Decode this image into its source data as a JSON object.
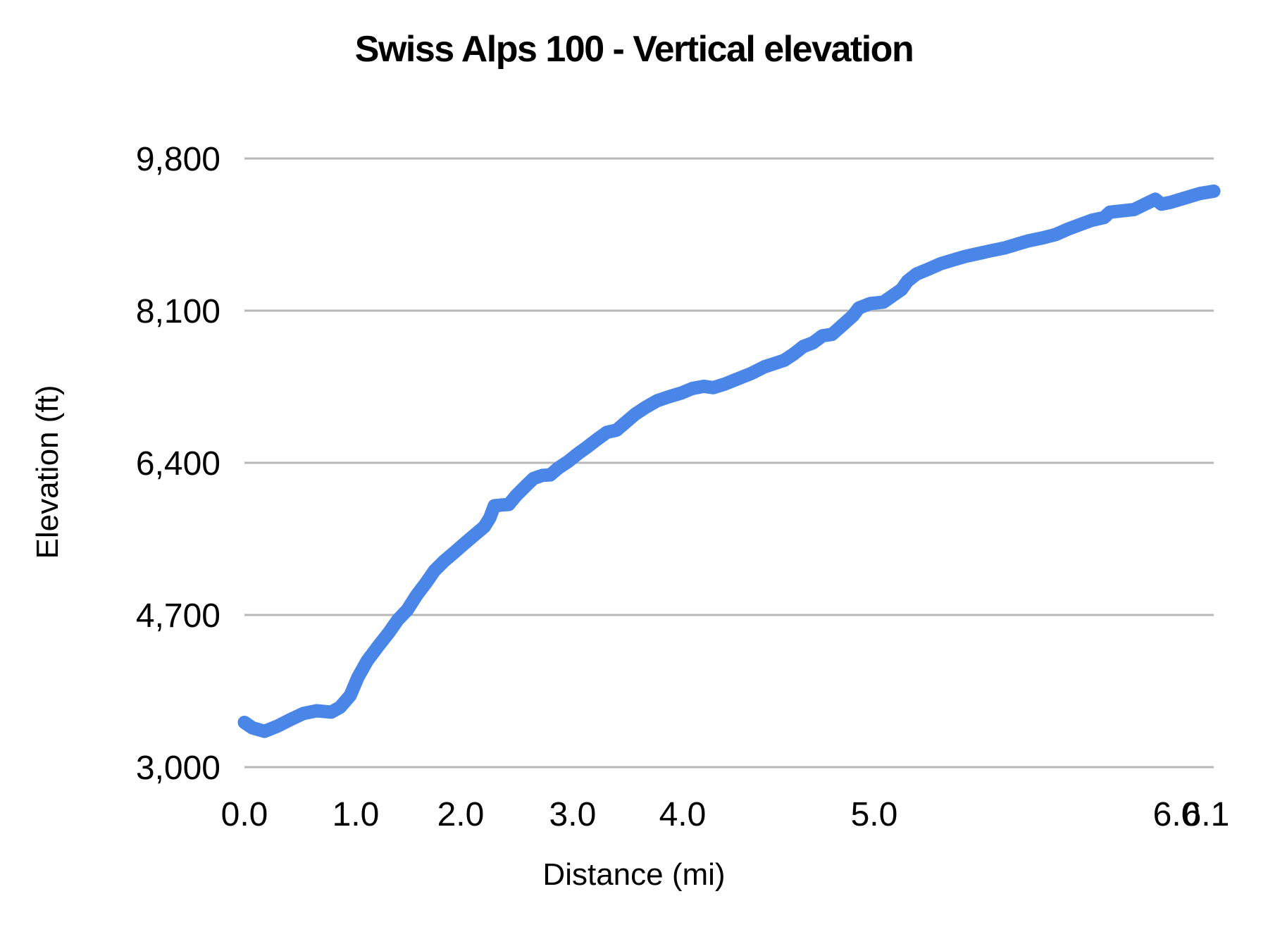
{
  "page": {
    "background": "#ffffff"
  },
  "chart_data": {
    "type": "line",
    "title": "Swiss Alps 100 - Vertical elevation",
    "xlabel": "Distance (mi)",
    "ylabel": "Elevation (ft)",
    "legend": "none",
    "grid": "horizontal-only",
    "grid_color": "#b7b7b7",
    "ylim": [
      3000,
      9800
    ],
    "xlim": [
      0,
      6.13
    ],
    "y_ticks": [
      {
        "value": 9800,
        "label": "9,800"
      },
      {
        "value": 8100,
        "label": "8,100"
      },
      {
        "value": 6400,
        "label": "6,400"
      },
      {
        "value": 4700,
        "label": "4,700"
      },
      {
        "value": 3000,
        "label": "3,000"
      }
    ],
    "x_ticks": [
      {
        "value": 0.0,
        "label": "0.0"
      },
      {
        "value": 1.0,
        "label": "1.0"
      },
      {
        "value": 2.0,
        "label": "2.0"
      },
      {
        "value": 3.0,
        "label": "3.0"
      },
      {
        "value": 4.0,
        "label": "4.0"
      },
      {
        "value": 5.0,
        "label": "5.0"
      },
      {
        "value": 6.0,
        "label": "6.0"
      },
      {
        "value": 6.1,
        "label": "6.1"
      }
    ],
    "x_axis_note": "category-style axis with uneven pixel spacing per mile",
    "x_anchors_mi_fraction": [
      [
        0.0,
        0.0
      ],
      [
        1.0,
        0.1148
      ],
      [
        2.0,
        0.2231
      ],
      [
        3.0,
        0.3386
      ],
      [
        4.0,
        0.452
      ],
      [
        5.0,
        0.6497
      ],
      [
        6.0,
        0.9615
      ],
      [
        6.1,
        0.992
      ],
      [
        6.13,
        1.0
      ]
    ],
    "series": [
      {
        "name": "Elevation",
        "color": "#4a86e8",
        "stroke_width": 19,
        "points_mi_ft": [
          [
            0.0,
            3500
          ],
          [
            0.07,
            3440
          ],
          [
            0.18,
            3400
          ],
          [
            0.3,
            3460
          ],
          [
            0.41,
            3530
          ],
          [
            0.53,
            3600
          ],
          [
            0.65,
            3630
          ],
          [
            0.78,
            3615
          ],
          [
            0.86,
            3670
          ],
          [
            0.95,
            3800
          ],
          [
            1.02,
            4000
          ],
          [
            1.11,
            4190
          ],
          [
            1.22,
            4360
          ],
          [
            1.32,
            4510
          ],
          [
            1.4,
            4645
          ],
          [
            1.49,
            4755
          ],
          [
            1.58,
            4920
          ],
          [
            1.67,
            5060
          ],
          [
            1.75,
            5195
          ],
          [
            1.84,
            5300
          ],
          [
            1.92,
            5380
          ],
          [
            2.03,
            5495
          ],
          [
            2.12,
            5590
          ],
          [
            2.21,
            5685
          ],
          [
            2.26,
            5785
          ],
          [
            2.3,
            5920
          ],
          [
            2.38,
            5930
          ],
          [
            2.43,
            5935
          ],
          [
            2.5,
            6040
          ],
          [
            2.58,
            6140
          ],
          [
            2.65,
            6225
          ],
          [
            2.73,
            6260
          ],
          [
            2.8,
            6265
          ],
          [
            2.87,
            6340
          ],
          [
            2.96,
            6415
          ],
          [
            3.04,
            6495
          ],
          [
            3.13,
            6575
          ],
          [
            3.22,
            6660
          ],
          [
            3.31,
            6740
          ],
          [
            3.4,
            6765
          ],
          [
            3.48,
            6850
          ],
          [
            3.57,
            6945
          ],
          [
            3.67,
            7025
          ],
          [
            3.77,
            7095
          ],
          [
            3.88,
            7140
          ],
          [
            3.99,
            7180
          ],
          [
            4.05,
            7230
          ],
          [
            4.11,
            7255
          ],
          [
            4.16,
            7240
          ],
          [
            4.22,
            7280
          ],
          [
            4.29,
            7340
          ],
          [
            4.36,
            7400
          ],
          [
            4.43,
            7475
          ],
          [
            4.48,
            7510
          ],
          [
            4.53,
            7545
          ],
          [
            4.58,
            7615
          ],
          [
            4.63,
            7700
          ],
          [
            4.68,
            7740
          ],
          [
            4.73,
            7820
          ],
          [
            4.78,
            7835
          ],
          [
            4.83,
            7930
          ],
          [
            4.89,
            8045
          ],
          [
            4.92,
            8130
          ],
          [
            4.98,
            8180
          ],
          [
            5.03,
            8195
          ],
          [
            5.06,
            8265
          ],
          [
            5.09,
            8335
          ],
          [
            5.11,
            8430
          ],
          [
            5.14,
            8510
          ],
          [
            5.18,
            8565
          ],
          [
            5.22,
            8625
          ],
          [
            5.26,
            8665
          ],
          [
            5.3,
            8705
          ],
          [
            5.34,
            8735
          ],
          [
            5.38,
            8765
          ],
          [
            5.43,
            8800
          ],
          [
            5.47,
            8840
          ],
          [
            5.51,
            8880
          ],
          [
            5.56,
            8915
          ],
          [
            5.6,
            8950
          ],
          [
            5.64,
            9010
          ],
          [
            5.68,
            9060
          ],
          [
            5.72,
            9110
          ],
          [
            5.76,
            9140
          ],
          [
            5.78,
            9200
          ],
          [
            5.82,
            9215
          ],
          [
            5.86,
            9230
          ],
          [
            5.89,
            9280
          ],
          [
            5.93,
            9345
          ],
          [
            5.95,
            9290
          ],
          [
            5.98,
            9310
          ],
          [
            6.01,
            9340
          ],
          [
            6.05,
            9380
          ],
          [
            6.08,
            9410
          ],
          [
            6.11,
            9425
          ],
          [
            6.13,
            9435
          ]
        ]
      }
    ]
  }
}
